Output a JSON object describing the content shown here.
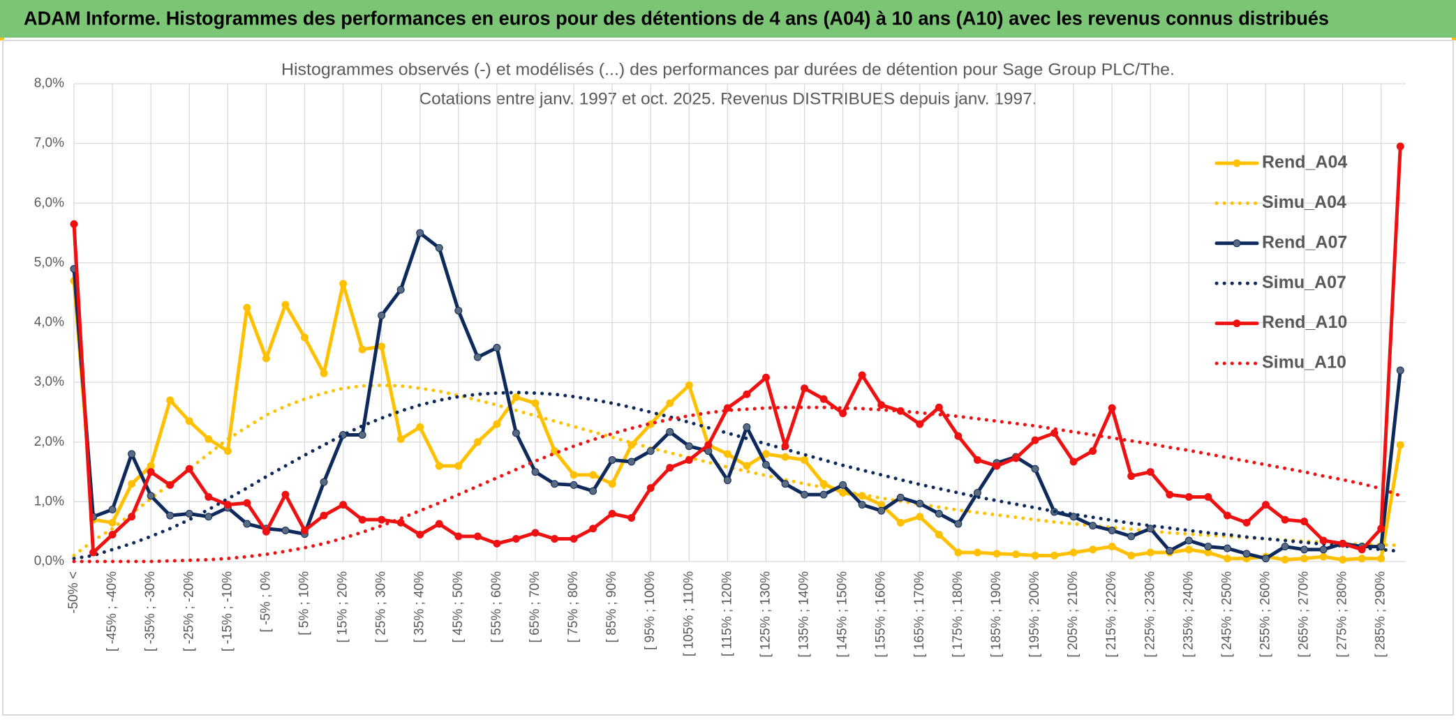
{
  "header": {
    "title": "ADAM Informe. Histogrammes des performances en euros pour des détentions de 4 ans (A04) à 10 ans (A10) avec les revenus connus distribués"
  },
  "chart_data": {
    "type": "line",
    "title": "Histogrammes observés (-) et modélisés (...) des performances par durées de détention pour Sage Group PLC/The.",
    "subtitle": "Cotations entre janv. 1997 et oct. 2025. Revenus DISTRIBUES depuis janv. 1997.",
    "categories": [
      "-50% <",
      null,
      "[ -45% ; -40%",
      null,
      "[ -35% ; -30%",
      null,
      "[ -25% ; -20%",
      null,
      "[ -15% ; -10%",
      null,
      "[ -5% ; 0%",
      null,
      "[ 5% ; 10%",
      null,
      "[ 15% ; 20%",
      null,
      "[ 25% ; 30%",
      null,
      "[ 35% ; 40%",
      null,
      "[ 45% ; 50%",
      null,
      "[ 55% ; 60%",
      null,
      "[ 65% ; 70%",
      null,
      "[ 75% ; 80%",
      null,
      "[ 85% ; 90%",
      null,
      "[ 95% ; 100%",
      null,
      "[ 105% ; 110%",
      null,
      "[ 115% ; 120%",
      null,
      "[ 125% ; 130%",
      null,
      "[ 135% ; 140%",
      null,
      "[ 145% ; 150%",
      null,
      "[ 155% ; 160%",
      null,
      "[ 165% ; 170%",
      null,
      "[ 175% ; 180%",
      null,
      "[ 185% ; 190%",
      null,
      "[ 195% ; 200%",
      null,
      "[ 205% ; 210%",
      null,
      "[ 215% ; 220%",
      null,
      "[ 225% ; 230%",
      null,
      "[ 235% ; 240%",
      null,
      "[ 245% ; 250%",
      null,
      "[ 255% ; 260%",
      null,
      "[ 265% ; 270%",
      null,
      "[ 275% ; 280%",
      null,
      "[ 285% ; 290%",
      null
    ],
    "ylim": [
      0,
      8
    ],
    "yticks": [
      {
        "value": 0,
        "label": "0,0%"
      },
      {
        "value": 1,
        "label": "1,0%"
      },
      {
        "value": 2,
        "label": "2,0%"
      },
      {
        "value": 3,
        "label": "3,0%"
      },
      {
        "value": 4,
        "label": "4,0%"
      },
      {
        "value": 5,
        "label": "5,0%"
      },
      {
        "value": 6,
        "label": "6,0%"
      },
      {
        "value": 7,
        "label": "7,0%"
      },
      {
        "value": 8,
        "label": "8,0%"
      }
    ],
    "grid": true,
    "legend": "right",
    "series": [
      {
        "name": "Rend_A04",
        "color": "#ffc000",
        "line_style": "solid",
        "markers": true,
        "values": [
          4.7,
          0.7,
          0.65,
          1.3,
          1.6,
          2.7,
          2.35,
          2.05,
          1.85,
          4.25,
          3.4,
          4.3,
          3.75,
          3.15,
          4.65,
          3.55,
          3.6,
          2.05,
          2.25,
          1.6,
          1.6,
          2.0,
          2.3,
          2.75,
          2.65,
          1.85,
          1.45,
          1.45,
          1.3,
          1.95,
          2.3,
          2.65,
          2.95,
          1.95,
          1.8,
          1.6,
          1.8,
          1.75,
          1.7,
          1.3,
          1.15,
          1.1,
          0.95,
          0.65,
          0.75,
          0.45,
          0.15,
          0.15,
          0.13,
          0.12,
          0.1,
          0.1,
          0.15,
          0.2,
          0.25,
          0.1,
          0.15,
          0.15,
          0.2,
          0.15,
          0.05,
          0.05,
          0.08,
          0.03,
          0.05,
          0.08,
          0.03,
          0.05,
          0.05,
          1.95
        ]
      },
      {
        "name": "Simu_A04",
        "color": "#ffc000",
        "line_style": "dotted",
        "markers": false,
        "values": [
          0.1,
          0.35,
          0.55,
          0.8,
          1.05,
          1.3,
          1.55,
          1.8,
          2.05,
          2.25,
          2.45,
          2.6,
          2.72,
          2.82,
          2.9,
          2.94,
          2.95,
          2.94,
          2.9,
          2.85,
          2.78,
          2.7,
          2.62,
          2.53,
          2.44,
          2.35,
          2.26,
          2.17,
          2.08,
          1.99,
          1.9,
          1.82,
          1.74,
          1.66,
          1.58,
          1.51,
          1.44,
          1.37,
          1.3,
          1.24,
          1.18,
          1.12,
          1.06,
          1.01,
          0.96,
          0.91,
          0.86,
          0.82,
          0.78,
          0.74,
          0.7,
          0.66,
          0.63,
          0.6,
          0.57,
          0.54,
          0.51,
          0.48,
          0.46,
          0.44,
          0.42,
          0.4,
          0.38,
          0.36,
          0.34,
          0.32,
          0.3,
          0.29,
          0.28,
          0.27
        ]
      },
      {
        "name": "Rend_A07",
        "color": "#0e2a5c",
        "line_style": "solid",
        "markers": true,
        "values": [
          4.9,
          0.75,
          0.87,
          1.8,
          1.1,
          0.77,
          0.8,
          0.75,
          0.9,
          0.63,
          0.55,
          0.52,
          0.46,
          1.33,
          2.12,
          2.12,
          4.12,
          4.55,
          5.5,
          5.25,
          4.2,
          3.42,
          3.58,
          2.15,
          1.5,
          1.3,
          1.28,
          1.18,
          1.7,
          1.67,
          1.85,
          2.17,
          1.93,
          1.85,
          1.36,
          2.25,
          1.62,
          1.3,
          1.12,
          1.12,
          1.28,
          0.95,
          0.85,
          1.07,
          0.97,
          0.8,
          0.63,
          1.15,
          1.65,
          1.75,
          1.55,
          0.83,
          0.75,
          0.6,
          0.52,
          0.42,
          0.55,
          0.18,
          0.35,
          0.25,
          0.22,
          0.13,
          0.05,
          0.25,
          0.2,
          0.2,
          0.3,
          0.25,
          0.25,
          3.2
        ]
      },
      {
        "name": "Simu_A07",
        "color": "#0e2a5c",
        "line_style": "dotted",
        "markers": false,
        "values": [
          0.05,
          0.1,
          0.2,
          0.3,
          0.42,
          0.55,
          0.7,
          0.87,
          1.05,
          1.23,
          1.42,
          1.6,
          1.78,
          1.95,
          2.12,
          2.27,
          2.4,
          2.52,
          2.62,
          2.7,
          2.76,
          2.8,
          2.82,
          2.83,
          2.82,
          2.8,
          2.76,
          2.71,
          2.65,
          2.58,
          2.5,
          2.42,
          2.33,
          2.24,
          2.15,
          2.06,
          1.97,
          1.88,
          1.79,
          1.7,
          1.61,
          1.53,
          1.45,
          1.37,
          1.29,
          1.22,
          1.15,
          1.08,
          1.02,
          0.96,
          0.9,
          0.84,
          0.79,
          0.74,
          0.69,
          0.64,
          0.6,
          0.56,
          0.52,
          0.48,
          0.45,
          0.41,
          0.38,
          0.35,
          0.32,
          0.29,
          0.26,
          0.23,
          0.2,
          0.17
        ]
      },
      {
        "name": "Rend_A10",
        "color": "#ee1111",
        "line_style": "solid",
        "markers": true,
        "values": [
          5.65,
          0.15,
          0.45,
          0.75,
          1.5,
          1.28,
          1.55,
          1.08,
          0.95,
          0.98,
          0.5,
          1.12,
          0.52,
          0.77,
          0.95,
          0.7,
          0.7,
          0.65,
          0.45,
          0.63,
          0.42,
          0.42,
          0.3,
          0.38,
          0.48,
          0.38,
          0.38,
          0.55,
          0.8,
          0.73,
          1.23,
          1.57,
          1.7,
          1.95,
          2.57,
          2.8,
          3.08,
          1.93,
          2.9,
          2.72,
          2.48,
          3.12,
          2.62,
          2.52,
          2.3,
          2.58,
          2.1,
          1.7,
          1.6,
          1.73,
          2.03,
          2.15,
          1.67,
          1.85,
          2.57,
          1.43,
          1.5,
          1.12,
          1.08,
          1.08,
          0.77,
          0.65,
          0.95,
          0.7,
          0.67,
          0.35,
          0.3,
          0.2,
          0.55,
          6.95
        ]
      },
      {
        "name": "Simu_A10",
        "color": "#ee1111",
        "line_style": "dotted",
        "markers": false,
        "values": [
          0,
          0,
          0,
          0,
          0,
          0.01,
          0.02,
          0.03,
          0.05,
          0.08,
          0.12,
          0.17,
          0.23,
          0.3,
          0.39,
          0.49,
          0.6,
          0.72,
          0.85,
          0.98,
          1.12,
          1.26,
          1.4,
          1.54,
          1.68,
          1.81,
          1.93,
          2.04,
          2.14,
          2.23,
          2.31,
          2.38,
          2.44,
          2.49,
          2.53,
          2.55,
          2.57,
          2.58,
          2.58,
          2.58,
          2.57,
          2.56,
          2.54,
          2.52,
          2.49,
          2.46,
          2.43,
          2.39,
          2.35,
          2.31,
          2.27,
          2.22,
          2.17,
          2.12,
          2.07,
          2.02,
          1.97,
          1.91,
          1.86,
          1.8,
          1.74,
          1.68,
          1.62,
          1.56,
          1.5,
          1.43,
          1.37,
          1.3,
          1.22,
          1.1
        ]
      }
    ]
  }
}
